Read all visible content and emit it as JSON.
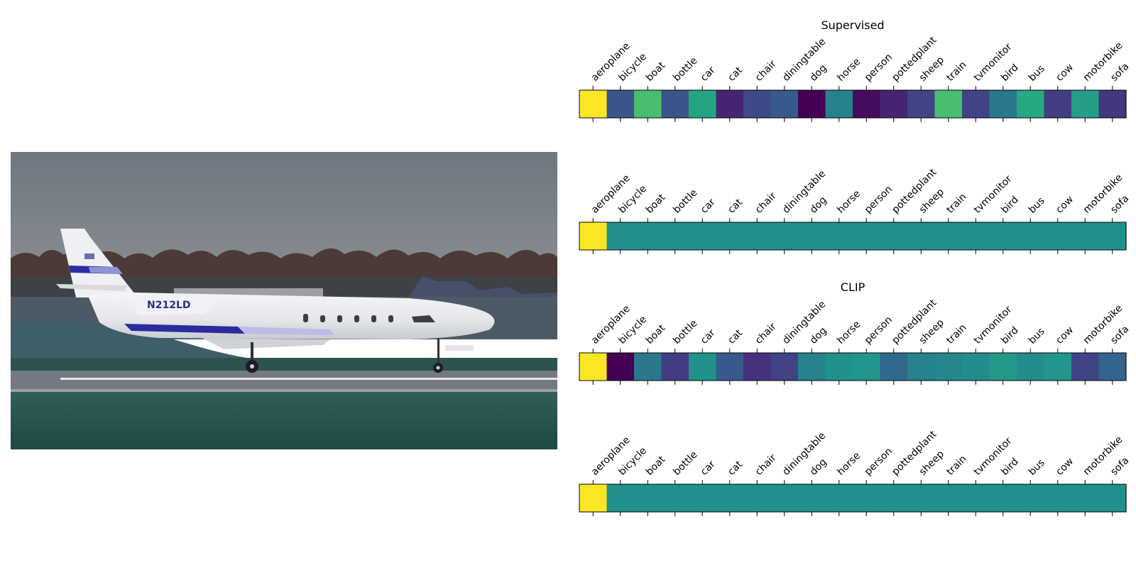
{
  "photo": {
    "registration": "N212LD"
  },
  "class_names": [
    "aeroplane",
    "bicycle",
    "boat",
    "bottle",
    "car",
    "cat",
    "chair",
    "diningtable",
    "dog",
    "horse",
    "person",
    "pottedplant",
    "sheep",
    "train",
    "tvmonitor",
    "bird",
    "bus",
    "cow",
    "motorbike",
    "sofa"
  ],
  "colormap": {
    "name": "viridis",
    "stops": [
      "#440154",
      "#472d7b",
      "#3b528b",
      "#2c728e",
      "#21918c",
      "#28ae80",
      "#5ec962",
      "#addc30",
      "#fde725"
    ]
  },
  "chart_data": [
    {
      "type": "heatmap",
      "title": "Supervised",
      "categories": [
        "aeroplane",
        "bicycle",
        "boat",
        "bottle",
        "car",
        "cat",
        "chair",
        "diningtable",
        "dog",
        "horse",
        "person",
        "pottedplant",
        "sheep",
        "train",
        "tvmonitor",
        "bird",
        "bus",
        "cow",
        "motorbike",
        "sofa"
      ],
      "values": [
        1.0,
        0.26,
        0.7,
        0.26,
        0.58,
        0.1,
        0.22,
        0.28,
        0.0,
        0.44,
        0.03,
        0.1,
        0.2,
        0.7,
        0.2,
        0.4,
        0.6,
        0.18,
        0.56,
        0.16
      ],
      "vmin": 0,
      "vmax": 1
    },
    {
      "type": "heatmap",
      "title": "",
      "categories": [
        "aeroplane",
        "bicycle",
        "boat",
        "bottle",
        "car",
        "cat",
        "chair",
        "diningtable",
        "dog",
        "horse",
        "person",
        "pottedplant",
        "sheep",
        "train",
        "tvmonitor",
        "bird",
        "bus",
        "cow",
        "motorbike",
        "sofa"
      ],
      "values": [
        1.0,
        0.5,
        0.5,
        0.5,
        0.5,
        0.5,
        0.5,
        0.5,
        0.5,
        0.5,
        0.5,
        0.5,
        0.5,
        0.5,
        0.5,
        0.5,
        0.5,
        0.5,
        0.5,
        0.5
      ],
      "vmin": 0,
      "vmax": 1
    },
    {
      "type": "heatmap",
      "title": "CLIP",
      "categories": [
        "aeroplane",
        "bicycle",
        "boat",
        "bottle",
        "car",
        "cat",
        "chair",
        "diningtable",
        "dog",
        "horse",
        "person",
        "pottedplant",
        "sheep",
        "train",
        "tvmonitor",
        "bird",
        "bus",
        "cow",
        "motorbike",
        "sofa"
      ],
      "values": [
        1.0,
        0.0,
        0.4,
        0.18,
        0.5,
        0.28,
        0.14,
        0.2,
        0.44,
        0.5,
        0.52,
        0.34,
        0.44,
        0.46,
        0.48,
        0.54,
        0.48,
        0.52,
        0.2,
        0.32
      ],
      "vmin": 0,
      "vmax": 1
    },
    {
      "type": "heatmap",
      "title": "",
      "categories": [
        "aeroplane",
        "bicycle",
        "boat",
        "bottle",
        "car",
        "cat",
        "chair",
        "diningtable",
        "dog",
        "horse",
        "person",
        "pottedplant",
        "sheep",
        "train",
        "tvmonitor",
        "bird",
        "bus",
        "cow",
        "motorbike",
        "sofa"
      ],
      "values": [
        1.0,
        0.5,
        0.5,
        0.5,
        0.5,
        0.5,
        0.5,
        0.5,
        0.5,
        0.5,
        0.5,
        0.5,
        0.5,
        0.5,
        0.5,
        0.5,
        0.5,
        0.5,
        0.5,
        0.5
      ],
      "vmin": 0,
      "vmax": 1
    }
  ]
}
